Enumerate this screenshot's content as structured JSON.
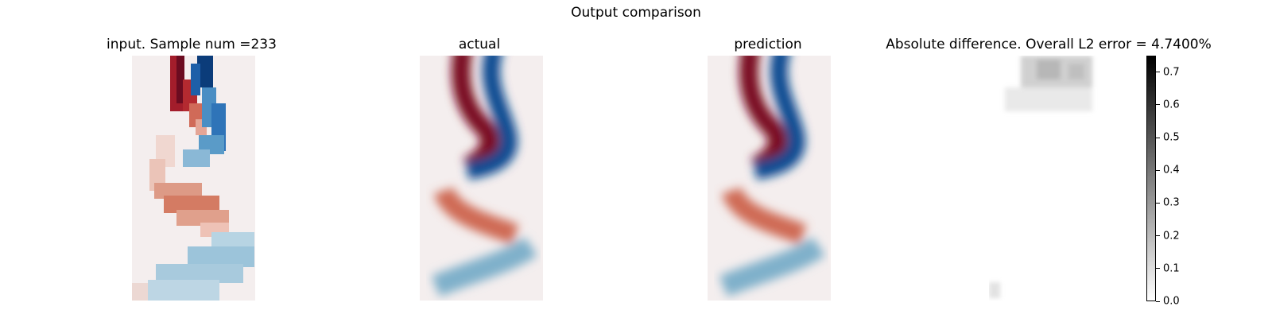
{
  "figure": {
    "title": "Output comparison"
  },
  "chart_data": [
    {
      "type": "heatmap",
      "title": "input. Sample num =233",
      "colormap": "red-blue diverging",
      "resolution": "coarse",
      "axes": "off"
    },
    {
      "type": "heatmap",
      "title": "actual",
      "colormap": "red-blue diverging",
      "resolution": "fine",
      "axes": "off"
    },
    {
      "type": "heatmap",
      "title": "prediction",
      "colormap": "red-blue diverging",
      "resolution": "fine",
      "axes": "off"
    },
    {
      "type": "heatmap",
      "title": "Absolute difference. Overall L2 error = 4.7400%",
      "colormap": "greys",
      "axes": "off",
      "colorbar": {
        "range": [
          0.0,
          0.75
        ],
        "ticks": [
          "0.0",
          "0.1",
          "0.2",
          "0.3",
          "0.4",
          "0.5",
          "0.6",
          "0.7"
        ],
        "tick_values": [
          0.0,
          0.1,
          0.2,
          0.3,
          0.4,
          0.5,
          0.6,
          0.7
        ]
      }
    }
  ],
  "colors": {
    "red": "#67001f",
    "blue": "#053061",
    "neutral": "#f4eeee"
  }
}
